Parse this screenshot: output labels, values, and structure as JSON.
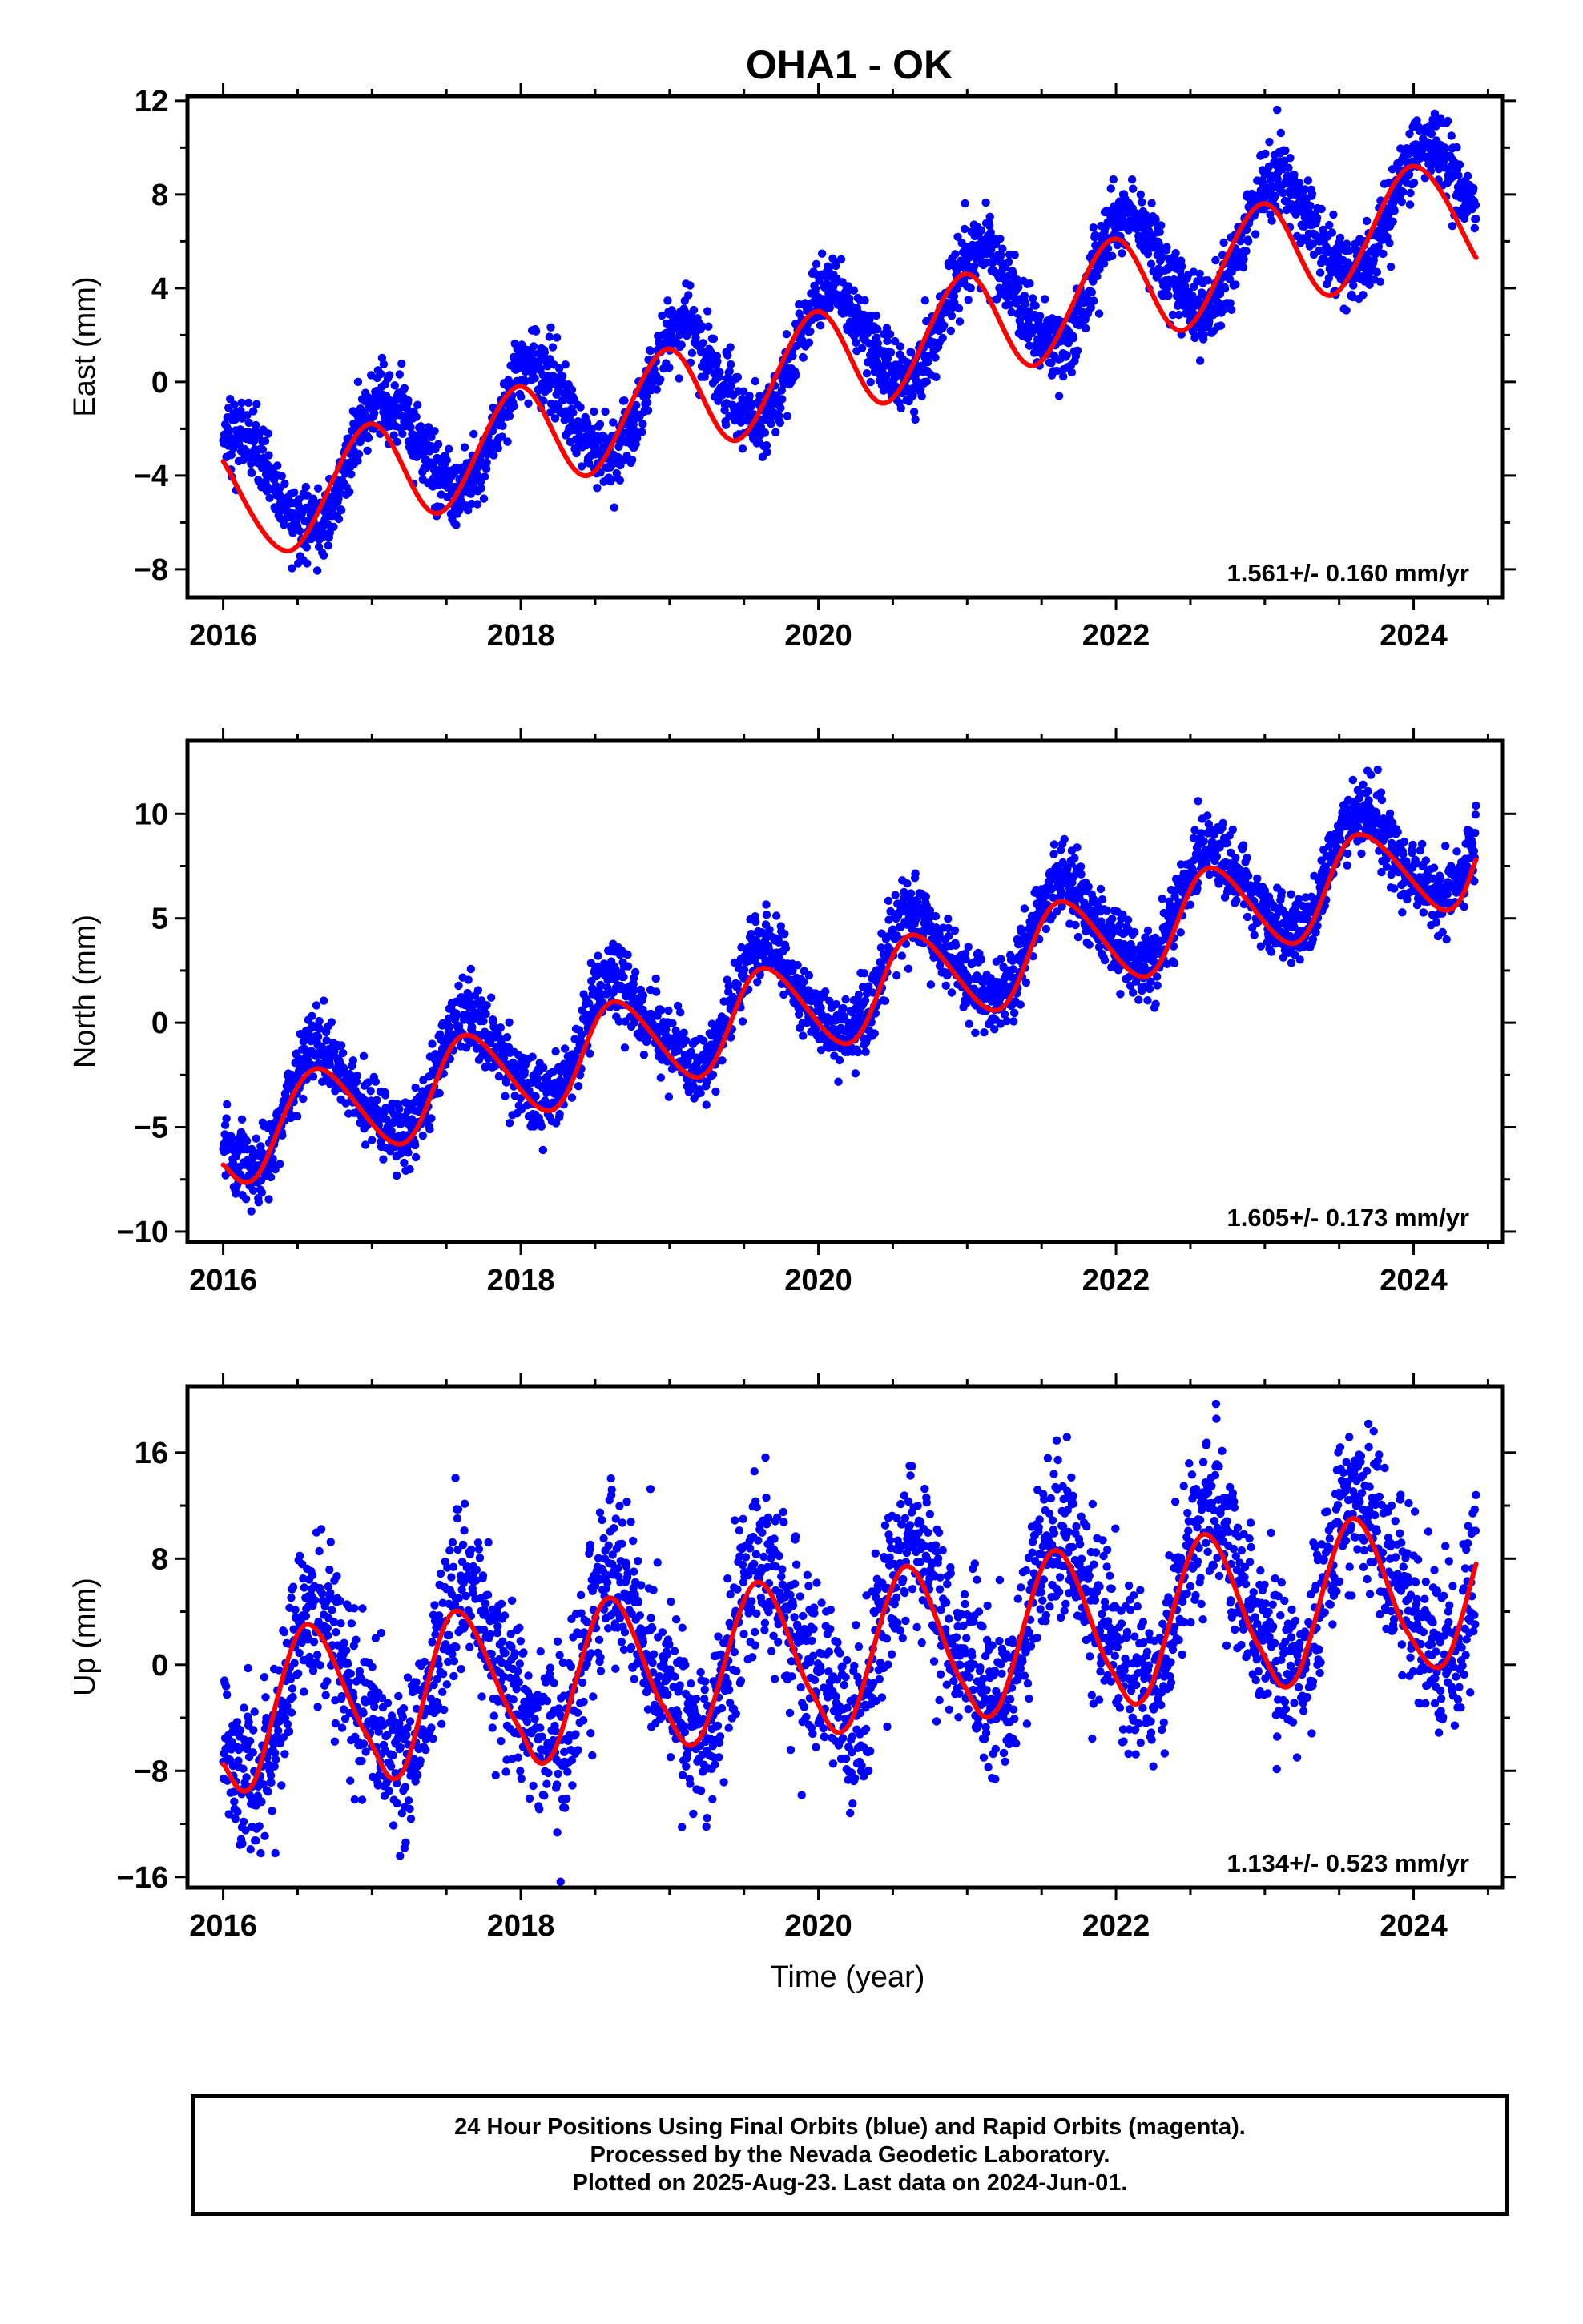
{
  "title": "OHA1 - OK",
  "xlabel": "Time (year)",
  "colors": {
    "final_orbits": "#0000ff",
    "model_fit": "#ff0000",
    "axes": "#000000"
  },
  "caption": [
    "24 Hour Positions Using Final Orbits (blue) and Rapid Orbits (magenta).",
    "Processed by the Nevada Geodetic Laboratory.",
    "Plotted on 2025-Aug-23. Last data on 2024-Jun-01."
  ],
  "chart_data": [
    {
      "type": "scatter",
      "panel": "east",
      "ylabel": "East (mm)",
      "xlim": [
        2015.76,
        2024.6
      ],
      "ylim": [
        -9.2,
        12.2
      ],
      "xticks": [
        2016,
        2018,
        2020,
        2022,
        2024
      ],
      "yticks": [
        -8,
        -4,
        0,
        4,
        8,
        12
      ],
      "ytick_labels": [
        "−8",
        "−4",
        "0",
        "4",
        "8",
        "12"
      ],
      "rate_label": "1.561+/- 0.160 mm/yr",
      "series": [
        {
          "style": "points",
          "model": {
            "t0": 2016.0,
            "y0": -4.8,
            "trend": 1.561,
            "annual_cos": 2.1,
            "annual_sin": 1.2,
            "semiannual_cos": 0.2,
            "semiannual_sin": 0.0,
            "noise_sd": 0.75
          },
          "t_start": 2016.0,
          "t_end": 2024.42
        },
        {
          "style": "line",
          "curve": [
            [
              2016.0,
              -3.4
            ],
            [
              2016.45,
              -7.2
            ],
            [
              2016.98,
              -1.8
            ],
            [
              2017.45,
              -5.6
            ],
            [
              2017.98,
              -0.2
            ],
            [
              2018.45,
              -4.0
            ],
            [
              2018.98,
              1.4
            ],
            [
              2019.45,
              -2.5
            ],
            [
              2019.98,
              3.0
            ],
            [
              2020.45,
              -0.9
            ],
            [
              2020.98,
              4.6
            ],
            [
              2021.45,
              0.7
            ],
            [
              2021.98,
              6.1
            ],
            [
              2022.45,
              2.2
            ],
            [
              2022.98,
              7.6
            ],
            [
              2023.45,
              3.7
            ],
            [
              2023.98,
              9.2
            ],
            [
              2024.42,
              5.3
            ]
          ]
        }
      ]
    },
    {
      "type": "scatter",
      "panel": "north",
      "ylabel": "North (mm)",
      "xlim": [
        2015.76,
        2024.6
      ],
      "ylim": [
        -10.5,
        13.5
      ],
      "xticks": [
        2016,
        2018,
        2020,
        2022,
        2024
      ],
      "yticks": [
        -10,
        -5,
        0,
        5,
        10
      ],
      "ytick_labels": [
        "−10",
        "−5",
        "0",
        "5",
        "10"
      ],
      "rate_label": "1.605+/- 0.173 mm/yr",
      "series": [
        {
          "style": "points",
          "model": {
            "t0": 2016.0,
            "y0": -4.8,
            "trend": 1.605,
            "annual_cos": -1.4,
            "annual_sin": -2.0,
            "semiannual_cos": 0.3,
            "semiannual_sin": 0.3,
            "noise_sd": 0.85
          },
          "t_start": 2016.0,
          "t_end": 2024.42
        },
        {
          "style": "line",
          "curve": [
            [
              2016.0,
              -6.8
            ],
            [
              2016.22,
              -7.4
            ],
            [
              2016.62,
              -2.2
            ],
            [
              2017.2,
              -5.8
            ],
            [
              2017.62,
              -0.6
            ],
            [
              2018.2,
              -4.2
            ],
            [
              2018.62,
              1.0
            ],
            [
              2019.2,
              -2.6
            ],
            [
              2019.62,
              2.6
            ],
            [
              2020.2,
              -1.0
            ],
            [
              2020.62,
              4.2
            ],
            [
              2021.2,
              0.6
            ],
            [
              2021.62,
              5.8
            ],
            [
              2022.2,
              2.2
            ],
            [
              2022.62,
              7.4
            ],
            [
              2023.2,
              3.8
            ],
            [
              2023.62,
              9.0
            ],
            [
              2024.2,
              5.4
            ],
            [
              2024.42,
              7.8
            ]
          ]
        }
      ]
    },
    {
      "type": "scatter",
      "panel": "up",
      "ylabel": "Up (mm)",
      "xlim": [
        2015.76,
        2024.6
      ],
      "ylim": [
        -16.8,
        21
      ],
      "xticks": [
        2016,
        2018,
        2020,
        2022,
        2024
      ],
      "yticks": [
        -16,
        -8,
        0,
        8,
        16
      ],
      "ytick_labels": [
        "−16",
        "−8",
        "0",
        "8",
        "16"
      ],
      "rate_label": "1.134+/- 0.523 mm/yr",
      "series": [
        {
          "style": "points",
          "model": {
            "t0": 2016.0,
            "y0": -2.8,
            "trend": 1.134,
            "annual_cos": -3.5,
            "annual_sin": -4.8,
            "semiannual_cos": 0.9,
            "semiannual_sin": 0.9,
            "noise_sd": 3.1
          },
          "t_start": 2016.0,
          "t_end": 2024.42
        },
        {
          "style": "line",
          "curve": [
            [
              2016.0,
              -7.5
            ],
            [
              2016.2,
              -9.0
            ],
            [
              2016.55,
              3.0
            ],
            [
              2016.95,
              -5.0
            ],
            [
              2017.2,
              -8.2
            ],
            [
              2017.55,
              4.0
            ],
            [
              2017.95,
              -4.0
            ],
            [
              2018.2,
              -7.0
            ],
            [
              2018.58,
              5.0
            ],
            [
              2018.95,
              -3.0
            ],
            [
              2019.2,
              -5.6
            ],
            [
              2019.58,
              6.2
            ],
            [
              2019.95,
              -2.0
            ],
            [
              2020.2,
              -4.6
            ],
            [
              2020.58,
              7.4
            ],
            [
              2020.95,
              -1.0
            ],
            [
              2021.2,
              -3.4
            ],
            [
              2021.58,
              8.6
            ],
            [
              2021.95,
              0.0
            ],
            [
              2022.2,
              -2.4
            ],
            [
              2022.58,
              9.8
            ],
            [
              2022.95,
              1.6
            ],
            [
              2023.2,
              -1.2
            ],
            [
              2023.58,
              11.0
            ],
            [
              2023.95,
              2.6
            ],
            [
              2024.2,
              0.0
            ],
            [
              2024.42,
              7.6
            ]
          ]
        }
      ]
    }
  ]
}
